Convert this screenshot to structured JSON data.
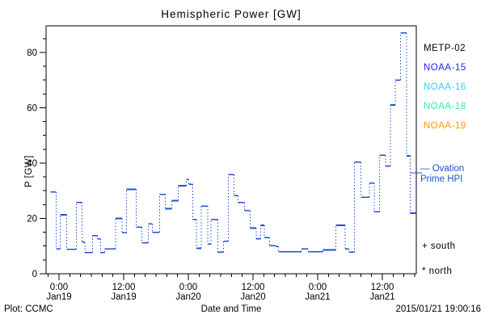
{
  "title": "Hemispheric Power [GW]",
  "y_axis_label": "P [GW]",
  "x_axis_label": "Date and Time",
  "footer": {
    "plot_credit": "Plot: CCMC",
    "timestamp": "2015/01/21 19:00:16"
  },
  "legend": {
    "satellites": [
      {
        "label": "METP-02",
        "color": "#000000"
      },
      {
        "label": "NOAA-15",
        "color": "#2222ee"
      },
      {
        "label": "NOAA-16",
        "color": "#33ccff"
      },
      {
        "label": "NOAA-18",
        "color": "#33ee99"
      },
      {
        "label": "NOAA-19",
        "color": "#ff9900"
      }
    ],
    "line_label_line1": "— Ovation",
    "line_label_line2": "Prime HPI",
    "south_label": "+ south",
    "north_label": "* north"
  },
  "chart_data": {
    "type": "line",
    "style": "step-post; solid horizontal segments joined by dotted vertical connectors",
    "title": "Hemispheric Power [GW]",
    "xlabel": "Date and Time",
    "ylabel": "P [GW]",
    "grid": false,
    "x_origin": "2015-01-19 00:00 (hours offset)",
    "xlim_hours": [
      -2.4,
      66.3
    ],
    "ylim": [
      0,
      89.6
    ],
    "y_major_ticks": [
      0,
      20,
      40,
      60,
      80
    ],
    "y_minor_step": 5,
    "x_minor_step_hours": 2,
    "x_major_ticks": [
      {
        "t": 0,
        "time": "0:00",
        "date": "Jan19"
      },
      {
        "t": 12,
        "time": "12:00",
        "date": "Jan19"
      },
      {
        "t": 24,
        "time": "0:00",
        "date": "Jan20"
      },
      {
        "t": 36,
        "time": "12:00",
        "date": "Jan20"
      },
      {
        "t": 48,
        "time": "0:00",
        "date": "Jan21"
      },
      {
        "t": 60,
        "time": "12:00",
        "date": "Jan21"
      }
    ],
    "series": [
      {
        "name": "Ovation Prime HPI",
        "color": "#2050d0",
        "end_t_hours": 66.3,
        "steps_t_hours_vs_gw": [
          [
            -1.6,
            29.5
          ],
          [
            -0.5,
            9.0
          ],
          [
            0.2,
            21.3
          ],
          [
            1.4,
            8.8
          ],
          [
            3.2,
            25.8
          ],
          [
            4.3,
            11.4
          ],
          [
            4.8,
            7.7
          ],
          [
            6.2,
            13.8
          ],
          [
            7.1,
            12.6
          ],
          [
            7.7,
            7.7
          ],
          [
            8.5,
            9.0
          ],
          [
            10.5,
            20.0
          ],
          [
            11.7,
            14.8
          ],
          [
            12.5,
            30.5
          ],
          [
            14.3,
            16.8
          ],
          [
            15.4,
            11.2
          ],
          [
            16.6,
            18.0
          ],
          [
            17.3,
            15.0
          ],
          [
            18.7,
            28.7
          ],
          [
            19.7,
            23.5
          ],
          [
            20.9,
            26.4
          ],
          [
            22.1,
            31.8
          ],
          [
            23.6,
            34.1
          ],
          [
            24.1,
            32.3
          ],
          [
            24.8,
            19.6
          ],
          [
            25.5,
            9.2
          ],
          [
            26.4,
            24.5
          ],
          [
            27.6,
            10.7
          ],
          [
            28.2,
            19.6
          ],
          [
            29.5,
            7.8
          ],
          [
            30.5,
            11.7
          ],
          [
            31.4,
            35.8
          ],
          [
            32.5,
            28.2
          ],
          [
            33.2,
            25.7
          ],
          [
            34.4,
            22.8
          ],
          [
            35.5,
            16.5
          ],
          [
            36.6,
            12.6
          ],
          [
            37.4,
            17.5
          ],
          [
            38.1,
            13.1
          ],
          [
            39.1,
            10.2
          ],
          [
            40.2,
            9.9
          ],
          [
            40.7,
            8.0
          ],
          [
            45.0,
            9.0
          ],
          [
            46.2,
            8.0
          ],
          [
            49.0,
            8.6
          ],
          [
            51.4,
            17.5
          ],
          [
            53.1,
            9.0
          ],
          [
            53.8,
            7.8
          ],
          [
            54.8,
            40.3
          ],
          [
            56.0,
            27.7
          ],
          [
            57.6,
            32.8
          ],
          [
            58.5,
            22.4
          ],
          [
            59.5,
            42.8
          ],
          [
            60.6,
            38.9
          ],
          [
            61.5,
            61.0
          ],
          [
            62.4,
            70.0
          ],
          [
            63.4,
            87.0
          ],
          [
            64.5,
            42.6
          ],
          [
            65.2,
            21.9
          ]
        ]
      }
    ]
  }
}
